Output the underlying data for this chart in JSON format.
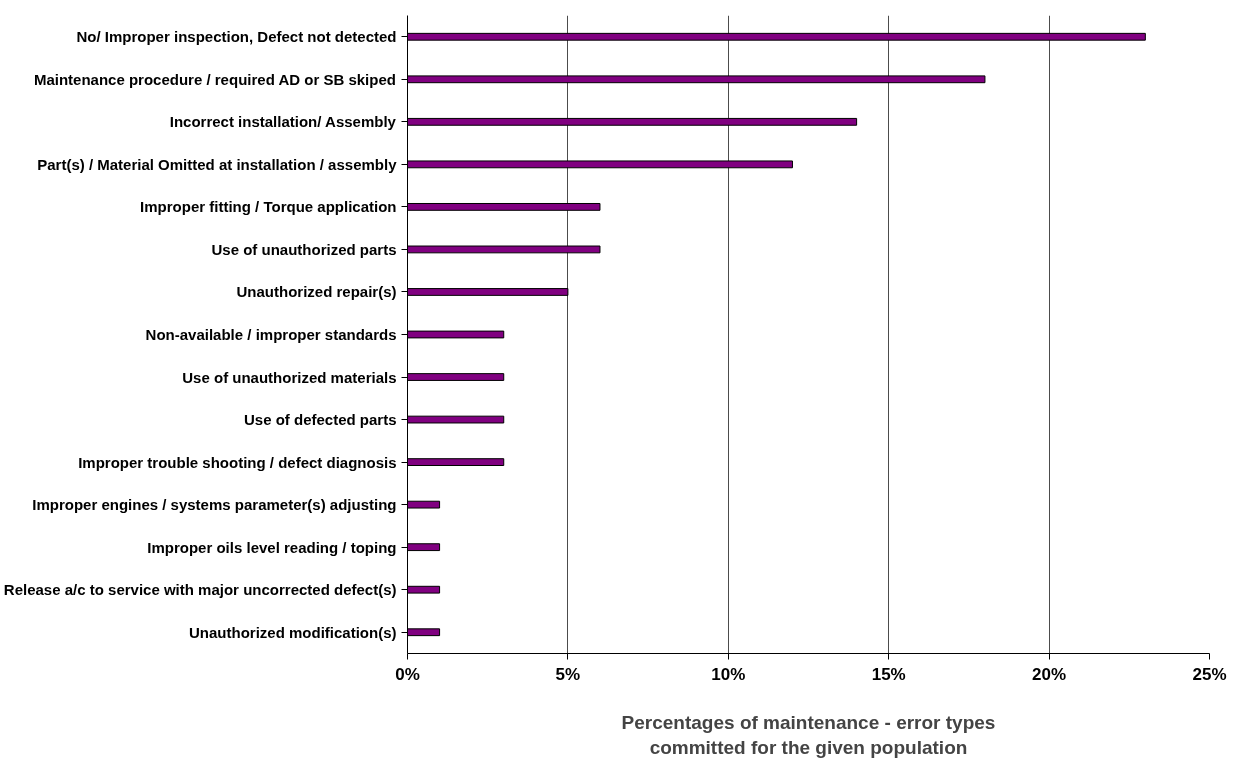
{
  "chart_data": {
    "type": "bar",
    "orientation": "horizontal",
    "categories": [
      "No/ Improper inspection, Defect not detected",
      "Maintenance procedure / required AD or SB skiped",
      "Incorrect installation/ Assembly",
      "Part(s) / Material Omitted at installation / assembly",
      "Improper fitting / Torque application",
      "Use of unauthorized parts",
      "Unauthorized repair(s)",
      "Non-available / improper standards",
      "Use of unauthorized materials",
      "Use of defected parts",
      "Improper trouble shooting / defect diagnosis",
      "Improper engines / systems parameter(s) adjusting",
      "Improper oils level reading / toping",
      "Release a/c to service with major uncorrected defect(s)",
      "Unauthorized modification(s)"
    ],
    "values": [
      23,
      18,
      14,
      12,
      6,
      6,
      5,
      3,
      3,
      3,
      3,
      1,
      1,
      1,
      1
    ],
    "color": "#800080",
    "xlabel": "Percentages of maintenance - error types\ncommitted for the given population",
    "xlim": [
      0,
      25
    ],
    "xticks": [
      {
        "value": 0,
        "label": "0%"
      },
      {
        "value": 5,
        "label": "5%"
      },
      {
        "value": 10,
        "label": "10%"
      },
      {
        "value": 15,
        "label": "15%"
      },
      {
        "value": 20,
        "label": "20%"
      },
      {
        "value": 25,
        "label": "25%"
      }
    ],
    "grid": "x"
  }
}
